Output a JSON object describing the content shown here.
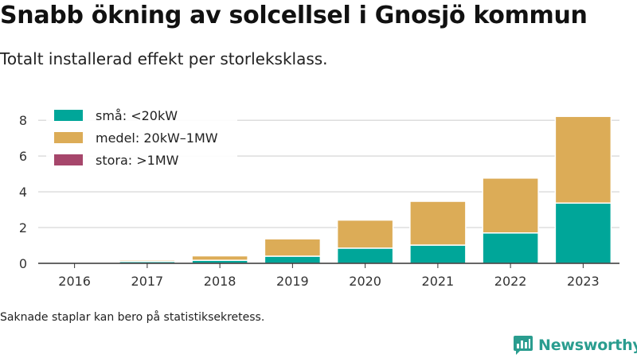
{
  "title": "Snabb ökning av solcellsel i Gnosjö kommun",
  "subtitle": "Totalt installerad effekt per storleksklass.",
  "note": "Saknade staplar kan bero på statistiksekretess.",
  "brand": {
    "name": "Newsworthy",
    "icon": "newsworthy-logo-icon",
    "color": "#2a9d8f"
  },
  "chart_data": {
    "type": "bar",
    "stacked": true,
    "categories": [
      "2016",
      "2017",
      "2018",
      "2019",
      "2020",
      "2021",
      "2022",
      "2023"
    ],
    "series": [
      {
        "name": "små: <20kW",
        "color": "#00a699",
        "values": [
          0,
          0.1,
          0.17,
          0.4,
          0.85,
          1.02,
          1.7,
          3.37
        ]
      },
      {
        "name": "medel: 20kW–1MW",
        "color": "#dcac57",
        "values": [
          0,
          0.08,
          0.25,
          0.97,
          1.57,
          2.45,
          3.07,
          4.85
        ]
      },
      {
        "name": "stora: >1MW",
        "color": "#a6466b",
        "values": [
          0,
          0,
          0,
          0,
          0,
          0,
          0,
          0
        ]
      }
    ],
    "ylim": [
      0,
      8.5
    ],
    "yticks": [
      "0",
      "2",
      "4",
      "6",
      "8"
    ],
    "xlabel": "",
    "ylabel": "",
    "grid": true,
    "legend": "top-left"
  }
}
